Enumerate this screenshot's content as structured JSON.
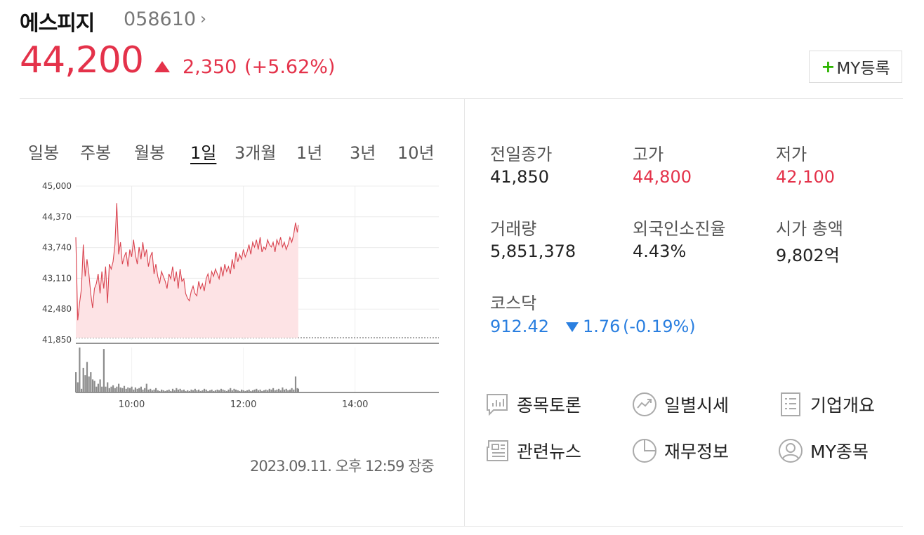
{
  "stock": {
    "name": "에스피지",
    "code": "058610",
    "price": "44,200",
    "change": "2,350",
    "change_pct": "(+5.62%)",
    "my_button_label": "MY등록",
    "direction": "up"
  },
  "colors": {
    "up": "#e4324a",
    "down": "#2a7fe0",
    "accent_green": "#2db400"
  },
  "periods": [
    {
      "label": "일봉",
      "active": false
    },
    {
      "label": "주봉",
      "active": false
    },
    {
      "label": "월봉",
      "active": false
    },
    {
      "label": "1일",
      "active": true
    },
    {
      "label": "3개월",
      "active": false
    },
    {
      "label": "1년",
      "active": false
    },
    {
      "label": "3년",
      "active": false
    },
    {
      "label": "10년",
      "active": false
    }
  ],
  "chart_data": {
    "type": "area",
    "x_tick_labels": [
      "10:00",
      "12:00",
      "14:00"
    ],
    "y_tick_labels": [
      "45,000",
      "44,370",
      "43,740",
      "43,110",
      "42,480",
      "41,850"
    ],
    "ylim": [
      41850,
      45000
    ],
    "xlim": [
      "09:00",
      "15:30"
    ],
    "baseline": 41850,
    "grid": true,
    "price_series": {
      "x": [
        "09:00",
        "09:02",
        "09:04",
        "09:06",
        "09:08",
        "09:10",
        "09:12",
        "09:14",
        "09:16",
        "09:18",
        "09:20",
        "09:22",
        "09:24",
        "09:26",
        "09:28",
        "09:30",
        "09:32",
        "09:34",
        "09:36",
        "09:38",
        "09:40",
        "09:42",
        "09:44",
        "09:46",
        "09:48",
        "09:50",
        "09:52",
        "09:54",
        "09:56",
        "09:58",
        "10:00",
        "10:02",
        "10:04",
        "10:06",
        "10:08",
        "10:10",
        "10:12",
        "10:14",
        "10:16",
        "10:18",
        "10:20",
        "10:22",
        "10:24",
        "10:26",
        "10:28",
        "10:30",
        "10:32",
        "10:34",
        "10:36",
        "10:38",
        "10:40",
        "10:42",
        "10:44",
        "10:46",
        "10:48",
        "10:50",
        "10:52",
        "10:54",
        "10:56",
        "10:58",
        "11:00",
        "11:02",
        "11:04",
        "11:06",
        "11:08",
        "11:10",
        "11:12",
        "11:14",
        "11:16",
        "11:18",
        "11:20",
        "11:22",
        "11:24",
        "11:26",
        "11:28",
        "11:30",
        "11:32",
        "11:34",
        "11:36",
        "11:38",
        "11:40",
        "11:42",
        "11:44",
        "11:46",
        "11:48",
        "11:50",
        "11:52",
        "11:54",
        "11:56",
        "11:58",
        "12:00",
        "12:02",
        "12:04",
        "12:06",
        "12:08",
        "12:10",
        "12:12",
        "12:14",
        "12:16",
        "12:18",
        "12:20",
        "12:22",
        "12:24",
        "12:26",
        "12:28",
        "12:30",
        "12:32",
        "12:34",
        "12:36",
        "12:38",
        "12:40",
        "12:42",
        "12:44",
        "12:46",
        "12:48",
        "12:50",
        "12:52",
        "12:54",
        "12:56",
        "12:58",
        "12:59"
      ],
      "values": [
        43950,
        42250,
        42600,
        42900,
        43800,
        43150,
        43500,
        43200,
        42800,
        42500,
        42900,
        43000,
        43200,
        42800,
        43250,
        42900,
        43350,
        42600,
        43400,
        43300,
        43450,
        43800,
        44650,
        43600,
        43850,
        43400,
        43550,
        43650,
        43350,
        43700,
        43550,
        43900,
        43600,
        43400,
        43750,
        43500,
        43850,
        43550,
        43700,
        43350,
        43550,
        43650,
        43200,
        43400,
        43150,
        43000,
        43250,
        43150,
        43050,
        42900,
        43200,
        43100,
        43350,
        43050,
        43250,
        42900,
        43300,
        43050,
        43100,
        42800,
        42700,
        42650,
        42850,
        42950,
        42800,
        42750,
        43050,
        42900,
        43000,
        42850,
        43100,
        43200,
        43000,
        43250,
        43150,
        43300,
        43200,
        43100,
        43350,
        43150,
        43400,
        43250,
        43350,
        43200,
        43500,
        43300,
        43650,
        43450,
        43600,
        43500,
        43700,
        43550,
        43650,
        43800,
        43600,
        43850,
        43750,
        43900,
        43700,
        43950,
        43650,
        43750,
        43700,
        43900,
        43800,
        43750,
        43850,
        43650,
        43900,
        43800,
        43950,
        43750,
        43850,
        43700,
        43800,
        43950,
        43850,
        44000,
        44250,
        44050,
        44200
      ]
    },
    "volume_series": {
      "values": [
        28,
        14,
        62,
        5,
        34,
        24,
        42,
        22,
        28,
        18,
        16,
        8,
        12,
        18,
        8,
        60,
        8,
        14,
        6,
        8,
        10,
        6,
        8,
        12,
        7,
        6,
        9,
        5,
        7,
        6,
        8,
        4,
        7,
        5,
        6,
        8,
        4,
        6,
        12,
        4,
        5,
        3,
        4,
        6,
        3,
        2,
        4,
        3,
        2,
        3,
        4,
        2,
        5,
        3,
        6,
        4,
        5,
        3,
        4,
        2,
        3,
        2,
        4,
        3,
        5,
        3,
        4,
        2,
        3,
        5,
        4,
        2,
        3,
        4,
        2,
        3,
        4,
        3,
        5,
        4,
        3,
        2,
        4,
        6,
        3,
        5,
        4,
        3,
        2,
        4,
        3,
        2,
        3,
        4,
        2,
        3,
        4,
        5,
        3,
        4,
        2,
        3,
        4,
        3,
        5,
        4,
        6,
        3,
        4,
        5,
        3,
        7,
        4,
        5,
        3,
        4,
        6,
        4,
        22,
        6,
        5
      ]
    }
  },
  "timestamp": "2023.09.11. 오후 12:59 장중",
  "stats": {
    "prev_close_label": "전일종가",
    "prev_close": "41,850",
    "high_label": "고가",
    "high": "44,800",
    "low_label": "저가",
    "low": "42,100",
    "volume_label": "거래량",
    "volume": "5,851,378",
    "foreign_label": "외국인소진율",
    "foreign": "4.43%",
    "mcap_label": "시가 총액",
    "mcap": "9,802억",
    "index_label": "코스닥",
    "index_value": "912.42",
    "index_change": "1.76",
    "index_change_pct": "(-0.19%)"
  },
  "links": [
    {
      "label": "종목토론",
      "icon": "discussion-chart-icon"
    },
    {
      "label": "일별시세",
      "icon": "trend-circle-icon"
    },
    {
      "label": "기업개요",
      "icon": "document-list-icon"
    },
    {
      "label": "관련뉴스",
      "icon": "newspaper-icon"
    },
    {
      "label": "재무정보",
      "icon": "pie-chart-icon"
    },
    {
      "label": "MY종목",
      "icon": "user-icon"
    }
  ]
}
